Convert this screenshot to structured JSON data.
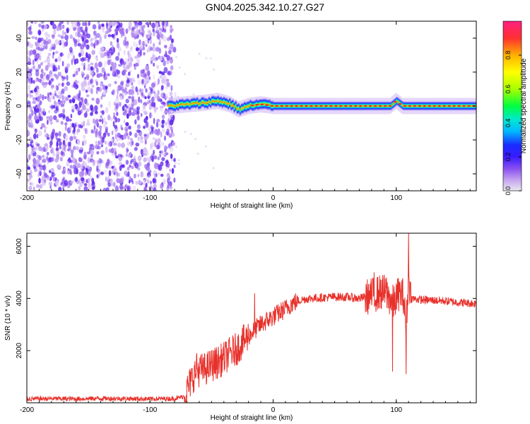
{
  "title": "GN04.2025.342.10.27.G27",
  "colors": {
    "axis": "#000000",
    "line": "#e8302a",
    "scatter": "#7a3ff0",
    "colormap": [
      "#e8e8f0",
      "#c8a8f0",
      "#8a50f0",
      "#3a1cff",
      "#1a2cff",
      "#00b8ff",
      "#00e8d0",
      "#00ff40",
      "#a8ff00",
      "#ffff00",
      "#ffb000",
      "#ff3030",
      "#ff2080"
    ]
  },
  "chart_data": [
    {
      "type": "heatmap",
      "title": "GN04.2025.342.10.27.G27",
      "xlabel": "Height of straight line (km)",
      "ylabel": "Frequency (Hz)",
      "xlim": [
        -200,
        165
      ],
      "ylim": [
        -50,
        50
      ],
      "xticks": [
        "-200",
        "-100",
        "0",
        "100"
      ],
      "xtick_values": [
        -200,
        -100,
        0,
        100
      ],
      "yticks": [
        "40",
        "20",
        "0",
        "-20",
        "-40"
      ],
      "ytick_values": [
        40,
        20,
        0,
        -20,
        -40
      ],
      "colorbar": {
        "label": "Normalized spectral amplitude",
        "ticks": [
          "0.0",
          "0.2",
          "0.4",
          "0.6",
          "0.8"
        ],
        "tick_values": [
          0.0,
          0.2,
          0.4,
          0.6,
          0.8
        ],
        "range": [
          0,
          1
        ]
      },
      "noise_region": {
        "x_range": [
          -200,
          -80
        ],
        "freq_range": [
          -50,
          50
        ],
        "amplitude": "low (~0.05-0.2)"
      },
      "carrier_ridge": {
        "x_range": [
          -85,
          165
        ],
        "freq_center": [
          [
            -85,
            0
          ],
          [
            -70,
            1
          ],
          [
            -55,
            2
          ],
          [
            -45,
            3
          ],
          [
            -35,
            1
          ],
          [
            -28,
            -2
          ],
          [
            -20,
            0
          ],
          [
            -10,
            1
          ],
          [
            0,
            0
          ],
          [
            50,
            0
          ],
          [
            95,
            0
          ],
          [
            100,
            3
          ],
          [
            105,
            0
          ],
          [
            165,
            0
          ]
        ],
        "half_width_hz": 3,
        "peak_amplitude": 0.9
      }
    },
    {
      "type": "line",
      "title": "",
      "xlabel": "Height of straight line (km)",
      "ylabel": "SNR (10 * v/v)",
      "xlim": [
        -200,
        165
      ],
      "ylim": [
        0,
        6500
      ],
      "xticks": [
        "-200",
        "-100",
        "0",
        "100"
      ],
      "xtick_values": [
        -200,
        -100,
        0,
        100
      ],
      "yticks": [
        "6000",
        "4000",
        "2000"
      ],
      "ytick_values": [
        6000,
        4000,
        2000
      ],
      "series": [
        {
          "name": "SNR",
          "x": [
            -200,
            -180,
            -160,
            -140,
            -120,
            -100,
            -80,
            -72,
            -68,
            -64,
            -60,
            -55,
            -50,
            -45,
            -40,
            -35,
            -30,
            -25,
            -20,
            -15,
            -10,
            -5,
            0,
            5,
            10,
            15,
            20,
            25,
            30,
            40,
            50,
            60,
            70,
            80,
            85,
            90,
            95,
            98,
            102,
            106,
            108,
            110,
            112,
            120,
            130,
            140,
            150,
            165
          ],
          "values": [
            150,
            160,
            150,
            170,
            160,
            150,
            160,
            250,
            700,
            1100,
            1250,
            1300,
            1450,
            1550,
            1700,
            1900,
            2050,
            2300,
            2550,
            2800,
            3000,
            3150,
            3300,
            3450,
            3600,
            3800,
            3900,
            3970,
            4000,
            4030,
            4060,
            4050,
            4000,
            4100,
            4200,
            4250,
            4000,
            3800,
            4200,
            4100,
            2800,
            4900,
            4000,
            3950,
            3930,
            3900,
            3850,
            3800
          ]
        }
      ]
    }
  ]
}
